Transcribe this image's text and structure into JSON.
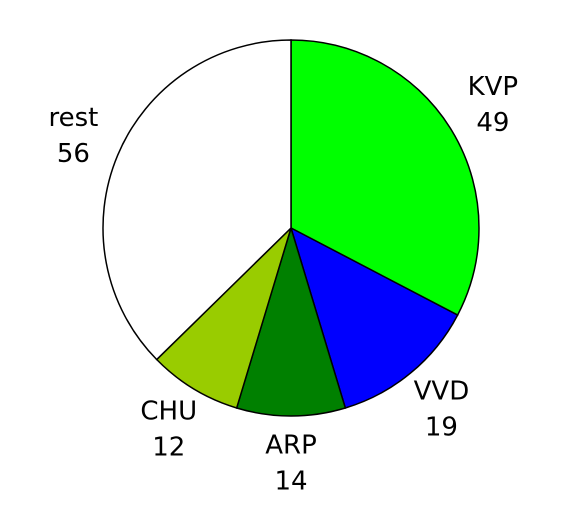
{
  "chart_data": {
    "type": "pie",
    "categories": [
      "KVP",
      "VVD",
      "ARP",
      "CHU",
      "rest"
    ],
    "values": [
      49,
      19,
      14,
      12,
      56
    ],
    "colors": [
      "#00ff00",
      "#0000ff",
      "#008000",
      "#99cc00",
      "#ffffff"
    ]
  }
}
